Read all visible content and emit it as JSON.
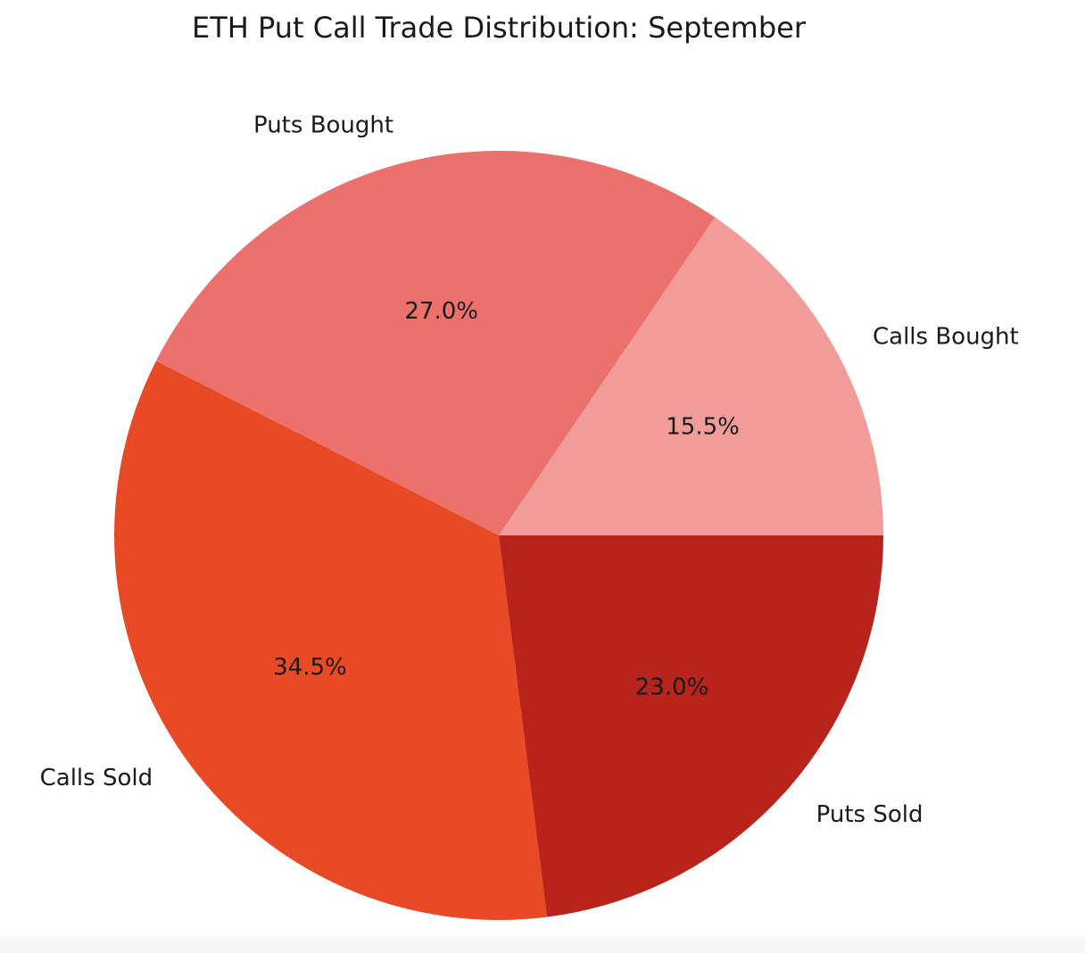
{
  "chart_data": {
    "type": "pie",
    "title": "ETH Put Call Trade Distribution: September",
    "categories": [
      "Calls Bought",
      "Puts Bought",
      "Calls Sold",
      "Puts Sold"
    ],
    "values": [
      15.5,
      27.0,
      34.5,
      23.0
    ],
    "value_labels": [
      "15.5%",
      "27.0%",
      "34.5%",
      "23.0%"
    ],
    "colors": [
      "#f19c99",
      "#ec706b",
      "#e94a26",
      "#b8241b"
    ]
  }
}
